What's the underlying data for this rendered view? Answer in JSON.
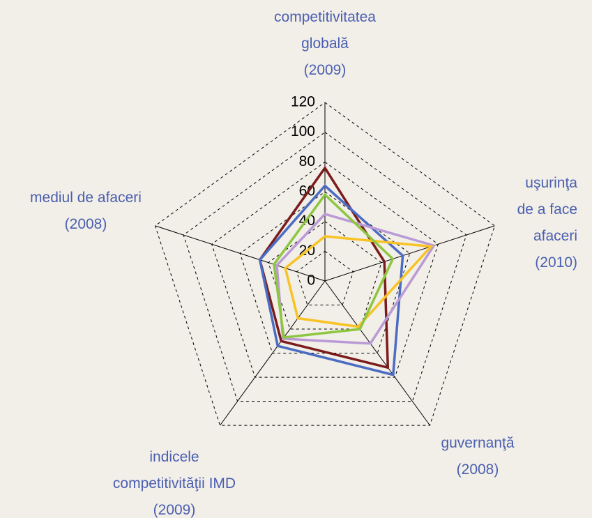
{
  "chart_data": {
    "type": "radar",
    "categories": [
      "competitivitatea\nglobală\n(2009)",
      "uşurinţa\nde a face\nafaceri\n(2010)",
      "guvernanţă\n(2008)",
      "indicele\ncompetitivităţii IMD\n(2009)",
      "mediul de afaceri\n(2008)"
    ],
    "series": [
      {
        "color": "#7b1c1c",
        "values": [
          76,
          42,
          72,
          50,
          46
        ]
      },
      {
        "color": "#4a6cc2",
        "values": [
          64,
          55,
          78,
          54,
          46
        ]
      },
      {
        "color": "#b99ad6",
        "values": [
          45,
          77,
          52,
          48,
          34
        ]
      },
      {
        "color": "#f7c325",
        "values": [
          30,
          75,
          38,
          31,
          28
        ]
      },
      {
        "color": "#8dc63f",
        "values": [
          58,
          48,
          40,
          47,
          36
        ]
      }
    ],
    "ylim": [
      0,
      120
    ],
    "yticks": [
      0,
      20,
      40,
      60,
      80,
      100,
      120
    ],
    "grid": true
  }
}
